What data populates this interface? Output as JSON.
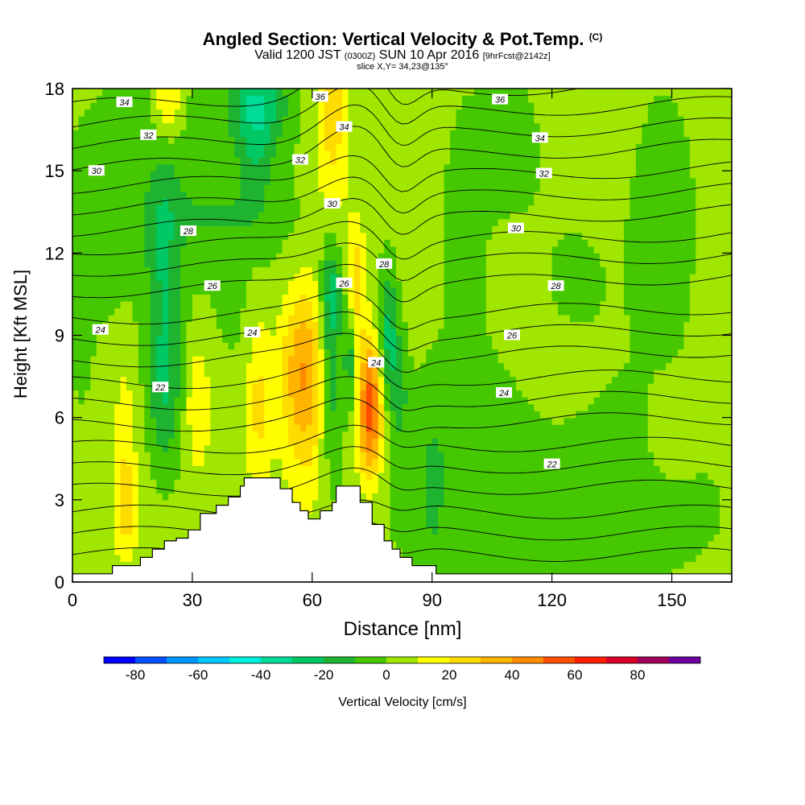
{
  "title": {
    "main": "Angled Section: Vertical Velocity & Pot.Temp.",
    "main_mark": "(C)",
    "valid_a": "Valid 1200 JST",
    "valid_b": "(0300Z)",
    "valid_c": "SUN 10 Apr 2016",
    "valid_d": "[9hrFcst@2142z]",
    "slice": "slice X,Y= 34,23@135°"
  },
  "chart_data": {
    "type": "heatmap",
    "xlabel": "Distance [nm]",
    "ylabel": "Height [Kft MSL]",
    "xlim": [
      0,
      165
    ],
    "ylim": [
      0,
      18
    ],
    "xticks": [
      0,
      30,
      60,
      90,
      120,
      150
    ],
    "yticks": [
      0,
      3,
      6,
      9,
      12,
      15,
      18
    ],
    "colorbar": {
      "label": "Vertical Velocity [cm/s]",
      "ticks": [
        -80,
        -60,
        -40,
        -20,
        0,
        20,
        40,
        60,
        80
      ],
      "bins": [
        {
          "from": -90,
          "to": -80,
          "color": "#0000ff"
        },
        {
          "from": -80,
          "to": -70,
          "color": "#0050ff"
        },
        {
          "from": -70,
          "to": -60,
          "color": "#0096ff"
        },
        {
          "from": -60,
          "to": -50,
          "color": "#00c8ff"
        },
        {
          "from": -50,
          "to": -40,
          "color": "#00f0dc"
        },
        {
          "from": -40,
          "to": -30,
          "color": "#00dc96"
        },
        {
          "from": -30,
          "to": -20,
          "color": "#00c864"
        },
        {
          "from": -20,
          "to": -10,
          "color": "#1eb432"
        },
        {
          "from": -10,
          "to": 0,
          "color": "#46c800"
        },
        {
          "from": 0,
          "to": 10,
          "color": "#a0e600"
        },
        {
          "from": 10,
          "to": 20,
          "color": "#ffff00"
        },
        {
          "from": 20,
          "to": 30,
          "color": "#ffdc00"
        },
        {
          "from": 30,
          "to": 40,
          "color": "#ffb400"
        },
        {
          "from": 40,
          "to": 50,
          "color": "#ff8c00"
        },
        {
          "from": 50,
          "to": 60,
          "color": "#ff5000"
        },
        {
          "from": 60,
          "to": 70,
          "color": "#ff1e00"
        },
        {
          "from": 70,
          "to": 80,
          "color": "#dc0028"
        },
        {
          "from": 80,
          "to": 90,
          "color": "#a0005a"
        },
        {
          "from": 90,
          "to": 100,
          "color": "#6e00a0"
        }
      ]
    },
    "background_level": 5,
    "velocity_features": [
      {
        "x": 23,
        "y": 10.5,
        "sx": 3,
        "sy": 3.5,
        "amp": -20
      },
      {
        "x": 23,
        "y": 6.5,
        "sx": 3,
        "sy": 1.8,
        "amp": -14
      },
      {
        "x": 28,
        "y": 16.5,
        "sx": 18,
        "sy": 3,
        "amp": -7
      },
      {
        "x": 48,
        "y": 10.5,
        "sx": 12,
        "sy": 3.5,
        "amp": -7
      },
      {
        "x": 13,
        "y": 5.5,
        "sx": 2,
        "sy": 2.5,
        "amp": 10
      },
      {
        "x": 13.5,
        "y": 2.8,
        "sx": 2,
        "sy": 1.2,
        "amp": 20
      },
      {
        "x": 31.5,
        "y": 6.5,
        "sx": 2,
        "sy": 1.6,
        "amp": 18
      },
      {
        "x": 46.5,
        "y": 6.5,
        "sx": 2.2,
        "sy": 2.5,
        "amp": 20
      },
      {
        "x": 58,
        "y": 8,
        "sx": 5,
        "sy": 2.2,
        "amp": 28
      },
      {
        "x": 58,
        "y": 6,
        "sx": 4,
        "sy": 3,
        "amp": 14
      },
      {
        "x": 64.5,
        "y": 8,
        "sx": 2,
        "sy": 2.5,
        "amp": -30
      },
      {
        "x": 65,
        "y": 10.5,
        "sx": 1.8,
        "sy": 1,
        "amp": -18
      },
      {
        "x": 71,
        "y": 11,
        "sx": 1.4,
        "sy": 1.5,
        "amp": 24
      },
      {
        "x": 69.5,
        "y": 8,
        "sx": 1.2,
        "sy": 1.3,
        "amp": -22
      },
      {
        "x": 74.5,
        "y": 6.3,
        "sx": 2.2,
        "sy": 1.8,
        "amp": 55
      },
      {
        "x": 79,
        "y": 9,
        "sx": 1.8,
        "sy": 1.8,
        "amp": -28
      },
      {
        "x": 82,
        "y": 7,
        "sx": 1.6,
        "sy": 1.5,
        "amp": -14
      },
      {
        "x": 46.5,
        "y": 17.5,
        "sx": 5,
        "sy": 1,
        "amp": -30
      },
      {
        "x": 46,
        "y": 15.6,
        "sx": 3,
        "sy": 1.2,
        "amp": -16
      },
      {
        "x": 24,
        "y": 17.5,
        "sx": 2.5,
        "sy": 1,
        "amp": 24
      },
      {
        "x": 65,
        "y": 17.5,
        "sx": 2.5,
        "sy": 1.2,
        "amp": 22
      },
      {
        "x": 65,
        "y": 15,
        "sx": 3,
        "sy": 1.3,
        "amp": 14
      },
      {
        "x": 8,
        "y": 12.5,
        "sx": 14,
        "sy": 3,
        "amp": -8
      },
      {
        "x": 36,
        "y": 13.3,
        "sx": 12,
        "sy": 0.8,
        "amp": -8
      },
      {
        "x": 98,
        "y": 13,
        "sx": 5,
        "sy": 4,
        "amp": -8
      },
      {
        "x": 110,
        "y": 16,
        "sx": 6,
        "sy": 2,
        "amp": -9
      },
      {
        "x": 125,
        "y": 11,
        "sx": 8,
        "sy": 2.5,
        "amp": -6
      },
      {
        "x": 148,
        "y": 13,
        "sx": 8,
        "sy": 5,
        "amp": -8
      },
      {
        "x": 110,
        "y": 6,
        "sx": 18,
        "sy": 2,
        "amp": -8
      },
      {
        "x": 120,
        "y": 2.5,
        "sx": 38,
        "sy": 2.5,
        "amp": -9
      },
      {
        "x": 120,
        "y": 7,
        "sx": 7,
        "sy": 1.5,
        "amp": 8
      },
      {
        "x": 150,
        "y": 5.5,
        "sx": 4,
        "sy": 1.2,
        "amp": 8
      },
      {
        "x": 90,
        "y": 3,
        "sx": 3,
        "sy": 3,
        "amp": -9
      },
      {
        "x": 2,
        "y": 9,
        "sx": 2,
        "sy": 2,
        "amp": -8
      }
    ],
    "isentropes": [
      {
        "label": "22",
        "base": 1.0,
        "label_at": [
          [
            22,
            7.1
          ],
          [
            120,
            4.3
          ]
        ]
      },
      {
        "label": "24",
        "base": 3.4,
        "label_at": [
          [
            7,
            9.2
          ],
          [
            45,
            9.1
          ],
          [
            76,
            8.0
          ],
          [
            108,
            6.9
          ]
        ]
      },
      {
        "label": "26",
        "base": 5.8,
        "label_at": [
          [
            35,
            10.8
          ],
          [
            68,
            10.9
          ],
          [
            110,
            9.0
          ]
        ]
      },
      {
        "label": "28",
        "base": 8.2,
        "label_at": [
          [
            29,
            12.8
          ],
          [
            78,
            11.6
          ],
          [
            121,
            10.8
          ]
        ]
      },
      {
        "label": "30",
        "base": 10.8,
        "label_at": [
          [
            6,
            15.0
          ],
          [
            65,
            13.8
          ],
          [
            111,
            12.9
          ]
        ]
      },
      {
        "label": "32",
        "base": 13.1,
        "label_at": [
          [
            19,
            16.3
          ],
          [
            57,
            15.4
          ],
          [
            118,
            14.9
          ]
        ]
      },
      {
        "label": "34",
        "base": 15.4,
        "label_at": [
          [
            13,
            17.5
          ],
          [
            68,
            16.6
          ],
          [
            117,
            16.2
          ]
        ]
      },
      {
        "label": "36",
        "base": 17.7,
        "label_at": [
          [
            62,
            17.7
          ],
          [
            107,
            17.6
          ]
        ]
      }
    ],
    "terrain_profile": [
      [
        0,
        0.3
      ],
      [
        10,
        0.3
      ],
      [
        10,
        0.6
      ],
      [
        17,
        0.6
      ],
      [
        17,
        0.9
      ],
      [
        20,
        0.9
      ],
      [
        20,
        1.2
      ],
      [
        23,
        1.2
      ],
      [
        23,
        1.5
      ],
      [
        26,
        1.5
      ],
      [
        26,
        1.6
      ],
      [
        29,
        1.6
      ],
      [
        29,
        1.9
      ],
      [
        32,
        1.9
      ],
      [
        32,
        2.5
      ],
      [
        36,
        2.5
      ],
      [
        36,
        2.8
      ],
      [
        39,
        2.8
      ],
      [
        39,
        3.1
      ],
      [
        42,
        3.1
      ],
      [
        42,
        3.5
      ],
      [
        43,
        3.5
      ],
      [
        43,
        3.8
      ],
      [
        52,
        3.8
      ],
      [
        52,
        3.4
      ],
      [
        55,
        3.4
      ],
      [
        55,
        2.9
      ],
      [
        57,
        2.9
      ],
      [
        57,
        2.6
      ],
      [
        59,
        2.6
      ],
      [
        59,
        2.3
      ],
      [
        62,
        2.3
      ],
      [
        62,
        2.6
      ],
      [
        65,
        2.6
      ],
      [
        65,
        2.9
      ],
      [
        66,
        2.9
      ],
      [
        66,
        3.5
      ],
      [
        72,
        3.5
      ],
      [
        72,
        2.9
      ],
      [
        75,
        2.9
      ],
      [
        75,
        2.1
      ],
      [
        78,
        2.1
      ],
      [
        78,
        1.5
      ],
      [
        80,
        1.5
      ],
      [
        80,
        1.2
      ],
      [
        82,
        1.2
      ],
      [
        82,
        0.9
      ],
      [
        85,
        0.9
      ],
      [
        85,
        0.6
      ],
      [
        91,
        0.6
      ],
      [
        91,
        0.3
      ],
      [
        165,
        0.3
      ]
    ]
  }
}
